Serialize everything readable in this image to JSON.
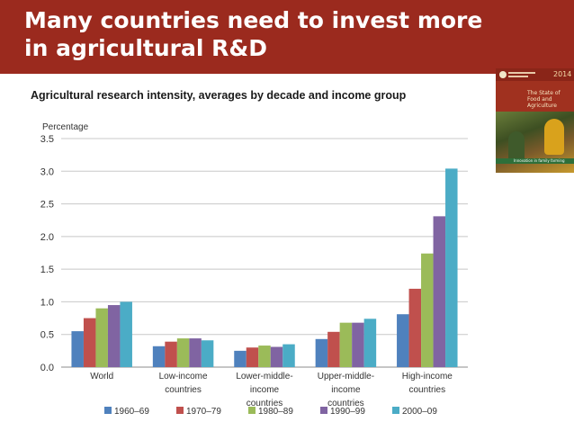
{
  "slide": {
    "title_lines": [
      "Many countries need to invest more",
      "in agricultural R&D"
    ],
    "colors": {
      "banner": "#9b2a1e",
      "text": "#ffffff"
    }
  },
  "cover": {
    "year": "2014",
    "title": "The State of Food and Agriculture",
    "subtitle": "Innovation in family farming"
  },
  "chart_data": {
    "type": "bar",
    "title": "Agricultural research intensity, averages by decade and income group",
    "ylabel": "Percentage",
    "xlabel": "",
    "ylim": [
      0,
      3.5
    ],
    "yticks": [
      "0.0",
      "0.5",
      "1.0",
      "1.5",
      "2.0",
      "2.5",
      "3.0",
      "3.5"
    ],
    "ytick_values": [
      0,
      0.5,
      1.0,
      1.5,
      2.0,
      2.5,
      3.0,
      3.5
    ],
    "grid": true,
    "legend_position": "bottom",
    "categories": [
      [
        "World"
      ],
      [
        "Low-income",
        "countries"
      ],
      [
        "Lower-middle-",
        "income",
        "countries"
      ],
      [
        "Upper-middle-",
        "income",
        "countries"
      ],
      [
        "High-income",
        "countries"
      ]
    ],
    "series": [
      {
        "name": "1960–69",
        "color": "#4f81bd",
        "values": [
          0.55,
          0.32,
          0.25,
          0.43,
          0.81
        ]
      },
      {
        "name": "1970–79",
        "color": "#c0504d",
        "values": [
          0.75,
          0.39,
          0.3,
          0.54,
          1.2
        ]
      },
      {
        "name": "1980–89",
        "color": "#9bbb59",
        "values": [
          0.9,
          0.44,
          0.33,
          0.68,
          1.74
        ]
      },
      {
        "name": "1990–99",
        "color": "#8064a2",
        "values": [
          0.95,
          0.44,
          0.31,
          0.68,
          2.31
        ]
      },
      {
        "name": "2000–09",
        "color": "#4bacc6",
        "values": [
          1.0,
          0.41,
          0.35,
          0.74,
          3.04
        ]
      }
    ]
  }
}
